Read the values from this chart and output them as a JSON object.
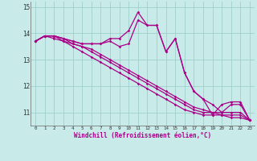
{
  "xlabel": "Windchill (Refroidissement éolien,°C)",
  "bg_color": "#c8eae8",
  "line_color": "#aa0088",
  "grid_color": "#9dcfcc",
  "xlim": [
    -0.5,
    23.5
  ],
  "ylim": [
    10.5,
    15.2
  ],
  "yticks": [
    11,
    12,
    13,
    14,
    15
  ],
  "ytick_labels": [
    "11",
    "12",
    "13",
    "14",
    "15"
  ],
  "xticks": [
    0,
    1,
    2,
    3,
    4,
    5,
    6,
    7,
    8,
    9,
    10,
    11,
    12,
    13,
    14,
    15,
    16,
    17,
    18,
    19,
    20,
    21,
    22,
    23
  ],
  "series": [
    [
      13.7,
      13.9,
      13.9,
      13.8,
      13.7,
      13.6,
      13.6,
      13.6,
      13.7,
      13.5,
      13.6,
      14.5,
      14.3,
      14.3,
      13.3,
      13.8,
      12.5,
      11.8,
      11.5,
      11.3,
      11.0,
      11.3,
      11.3,
      10.7
    ],
    [
      13.7,
      13.9,
      13.9,
      13.7,
      13.6,
      13.5,
      13.4,
      13.2,
      13.0,
      12.8,
      12.6,
      12.4,
      12.2,
      12.0,
      11.8,
      11.6,
      11.4,
      11.2,
      11.1,
      11.0,
      10.9,
      10.8,
      10.8,
      10.7
    ],
    [
      13.7,
      13.9,
      13.8,
      13.7,
      13.5,
      13.3,
      13.1,
      12.9,
      12.7,
      12.5,
      12.3,
      12.1,
      11.9,
      11.7,
      11.5,
      11.3,
      11.1,
      11.0,
      10.9,
      10.9,
      10.9,
      10.9,
      10.9,
      10.7
    ],
    [
      13.7,
      13.9,
      13.9,
      13.8,
      13.6,
      13.5,
      13.3,
      13.1,
      12.9,
      12.7,
      12.5,
      12.3,
      12.1,
      11.9,
      11.7,
      11.5,
      11.3,
      11.1,
      11.0,
      11.0,
      11.0,
      11.0,
      11.0,
      10.7
    ],
    [
      13.7,
      13.9,
      13.9,
      13.8,
      13.7,
      13.6,
      13.6,
      13.6,
      13.8,
      13.8,
      14.1,
      14.8,
      14.3,
      14.3,
      13.3,
      13.8,
      12.5,
      11.8,
      11.5,
      10.9,
      11.3,
      11.4,
      11.4,
      10.7
    ]
  ]
}
